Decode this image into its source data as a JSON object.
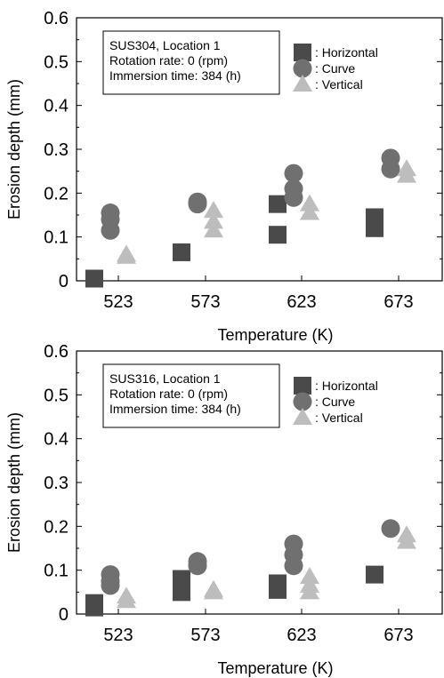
{
  "chart_data": [
    {
      "type": "scatter",
      "title": "",
      "xlabel": "Temperature (K)",
      "ylabel": "Erosion depth (mm)",
      "categories": [
        "523",
        "573",
        "623",
        "673"
      ],
      "yticks": [
        "0",
        "0.1",
        "0.2",
        "0.3",
        "0.4",
        "0.5",
        "0.6"
      ],
      "ylim": [
        0,
        0.6
      ],
      "notes": [
        "SUS304, Location 1",
        "Rotation rate: 0 (rpm)",
        "Immersion time: 384 (h)"
      ],
      "series": [
        {
          "name": ": Horizontal",
          "marker": "square",
          "color": "#4a4a4a",
          "points": [
            {
              "x": "523",
              "y": 0.005
            },
            {
              "x": "573",
              "y": 0.065
            },
            {
              "x": "623",
              "y": 0.105
            },
            {
              "x": "623",
              "y": 0.175
            },
            {
              "x": "673",
              "y": 0.12
            },
            {
              "x": "673",
              "y": 0.145
            }
          ]
        },
        {
          "name": ": Curve",
          "marker": "circle",
          "color": "#707070",
          "points": [
            {
              "x": "523",
              "y": 0.115
            },
            {
              "x": "523",
              "y": 0.14
            },
            {
              "x": "523",
              "y": 0.155
            },
            {
              "x": "573",
              "y": 0.175
            },
            {
              "x": "573",
              "y": 0.18
            },
            {
              "x": "623",
              "y": 0.19
            },
            {
              "x": "623",
              "y": 0.21
            },
            {
              "x": "623",
              "y": 0.245
            },
            {
              "x": "673",
              "y": 0.255
            },
            {
              "x": "673",
              "y": 0.28
            }
          ]
        },
        {
          "name": ": Vertical",
          "marker": "triangle",
          "color": "#bdbdbd",
          "points": [
            {
              "x": "523",
              "y": 0.055
            },
            {
              "x": "523",
              "y": 0.06
            },
            {
              "x": "573",
              "y": 0.115
            },
            {
              "x": "573",
              "y": 0.135
            },
            {
              "x": "573",
              "y": 0.16
            },
            {
              "x": "623",
              "y": 0.155
            },
            {
              "x": "623",
              "y": 0.175
            },
            {
              "x": "673",
              "y": 0.24
            },
            {
              "x": "673",
              "y": 0.255
            }
          ]
        }
      ]
    },
    {
      "type": "scatter",
      "title": "",
      "xlabel": "Temperature (K)",
      "ylabel": "Erosion depth (mm)",
      "categories": [
        "523",
        "573",
        "623",
        "673"
      ],
      "yticks": [
        "0",
        "0.1",
        "0.2",
        "0.3",
        "0.4",
        "0.5",
        "0.6"
      ],
      "ylim": [
        0,
        0.6
      ],
      "notes": [
        "SUS316, Location 1",
        "Rotation rate: 0 (rpm)",
        "Immersion time: 384 (h)"
      ],
      "series": [
        {
          "name": ": Horizontal",
          "marker": "square",
          "color": "#4a4a4a",
          "points": [
            {
              "x": "523",
              "y": 0.015
            },
            {
              "x": "523",
              "y": 0.025
            },
            {
              "x": "573",
              "y": 0.05
            },
            {
              "x": "573",
              "y": 0.065
            },
            {
              "x": "573",
              "y": 0.08
            },
            {
              "x": "623",
              "y": 0.055
            },
            {
              "x": "623",
              "y": 0.07
            },
            {
              "x": "673",
              "y": 0.09
            }
          ]
        },
        {
          "name": ": Curve",
          "marker": "circle",
          "color": "#707070",
          "points": [
            {
              "x": "523",
              "y": 0.065
            },
            {
              "x": "523",
              "y": 0.075
            },
            {
              "x": "523",
              "y": 0.09
            },
            {
              "x": "573",
              "y": 0.11
            },
            {
              "x": "573",
              "y": 0.12
            },
            {
              "x": "623",
              "y": 0.11
            },
            {
              "x": "623",
              "y": 0.135
            },
            {
              "x": "623",
              "y": 0.16
            },
            {
              "x": "673",
              "y": 0.195
            }
          ]
        },
        {
          "name": ": Vertical",
          "marker": "triangle",
          "color": "#bdbdbd",
          "points": [
            {
              "x": "523",
              "y": 0.03
            },
            {
              "x": "523",
              "y": 0.04
            },
            {
              "x": "573",
              "y": 0.05
            },
            {
              "x": "573",
              "y": 0.055
            },
            {
              "x": "623",
              "y": 0.05
            },
            {
              "x": "623",
              "y": 0.065
            },
            {
              "x": "623",
              "y": 0.085
            },
            {
              "x": "673",
              "y": 0.165
            },
            {
              "x": "673",
              "y": 0.18
            }
          ]
        }
      ]
    }
  ]
}
